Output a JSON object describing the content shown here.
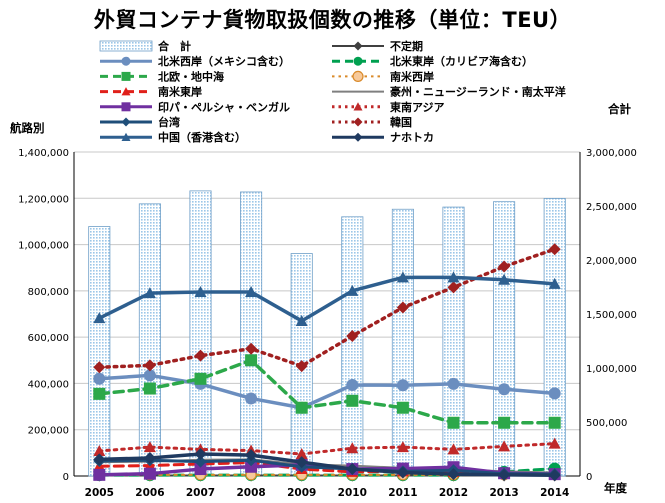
{
  "chart_data": {
    "type": "bar+line",
    "title": "外貿コンテナ貨物取扱個数の推移（単位：TEU）",
    "x": [
      "2005",
      "2006",
      "2007",
      "2008",
      "2009",
      "2010",
      "2011",
      "2012",
      "2013",
      "2014"
    ],
    "xlabel": "年度",
    "ylabel_left": "航路別",
    "ylabel_right": "合計",
    "ylim_left": [
      0,
      1400000
    ],
    "ylim_right": [
      0,
      3000000
    ],
    "yticks_left": [
      "0",
      "200,000",
      "400,000",
      "600,000",
      "800,000",
      "1,000,000",
      "1,200,000",
      "1,400,000"
    ],
    "yticks_right": [
      "0",
      "500,000",
      "1,000,000",
      "1,500,000",
      "2,000,000",
      "2,500,000",
      "3,000,000"
    ],
    "bar": {
      "name": "合　計",
      "axis": "right",
      "color": "#9cc7e8",
      "values": [
        2310000,
        2520000,
        2640000,
        2630000,
        2060000,
        2400000,
        2470000,
        2490000,
        2540000,
        2570000
      ]
    },
    "series": [
      {
        "name": "不定期",
        "color": "#404040",
        "marker": "diamond",
        "dash": "solid",
        "width": 2,
        "values": [
          2000,
          2000,
          2000,
          2000,
          2000,
          2000,
          2000,
          2000,
          2000,
          2000
        ]
      },
      {
        "name": "北米西岸（メキシコ含む）",
        "color": "#6b8ebf",
        "marker": "circle",
        "dash": "solid",
        "width": 3.5,
        "values": [
          420000,
          435000,
          398000,
          335000,
          295000,
          393000,
          392000,
          398000,
          375000,
          357000
        ]
      },
      {
        "name": "北米東岸（カリビア海含む）",
        "color": "#00a050",
        "marker": "circle",
        "dash": "dash",
        "width": 3,
        "values": [
          4000,
          4000,
          4000,
          4000,
          4000,
          4000,
          4000,
          4000,
          18000,
          32000
        ]
      },
      {
        "name": "北欧・地中海",
        "color": "#2ca84a",
        "marker": "square",
        "dash": "dash",
        "width": 3.5,
        "values": [
          355000,
          378000,
          420000,
          500000,
          295000,
          325000,
          295000,
          230000,
          230000,
          230000
        ]
      },
      {
        "name": "南米西岸",
        "color": "#d98a2a",
        "marker": "xcircle",
        "dash": "dot",
        "width": 2,
        "values": [
          5000,
          5000,
          5000,
          5000,
          5000,
          5000,
          5000,
          5000,
          5000,
          5000
        ]
      },
      {
        "name": "南米東岸",
        "color": "#e0201a",
        "marker": "triangle",
        "dash": "dash",
        "width": 3,
        "values": [
          42000,
          45000,
          52000,
          58000,
          30000,
          18000,
          20000,
          18000,
          12000,
          8000
        ]
      },
      {
        "name": "豪州・ニュージーランド・南太平洋",
        "color": "#7f7f7f",
        "marker": "none",
        "dash": "solid",
        "width": 2,
        "values": [
          60000,
          62000,
          70000,
          72000,
          50000,
          45000,
          35000,
          30000,
          20000,
          15000
        ]
      },
      {
        "name": "印パ・ペルシャ・ベンガル",
        "color": "#7030a0",
        "marker": "square",
        "dash": "solid",
        "width": 3.5,
        "values": [
          5000,
          10000,
          30000,
          40000,
          48000,
          30000,
          32000,
          38000,
          12000,
          8000
        ]
      },
      {
        "name": "東南アジア",
        "color": "#c0292a",
        "marker": "triangle",
        "dash": "dot",
        "width": 3,
        "values": [
          108000,
          125000,
          115000,
          110000,
          95000,
          120000,
          125000,
          115000,
          128000,
          140000
        ]
      },
      {
        "name": "台湾",
        "color": "#1f4e79",
        "marker": "diamond",
        "dash": "solid",
        "width": 3,
        "values": [
          65000,
          68000,
          62000,
          68000,
          40000,
          30000,
          20000,
          25000,
          10000,
          8000
        ]
      },
      {
        "name": "韓国",
        "color": "#a02020",
        "marker": "diamond",
        "dash": "dot",
        "width": 3.5,
        "values": [
          470000,
          478000,
          520000,
          550000,
          475000,
          605000,
          728000,
          815000,
          905000,
          980000
        ]
      },
      {
        "name": "中国（香港含む）",
        "color": "#2e5f8f",
        "marker": "triangle",
        "dash": "solid",
        "width": 3.5,
        "values": [
          682000,
          790000,
          795000,
          795000,
          670000,
          800000,
          858000,
          858000,
          848000,
          830000
        ]
      },
      {
        "name": "ナホトカ",
        "color": "#1f3a60",
        "marker": "diamond",
        "dash": "solid",
        "width": 3.5,
        "values": [
          72000,
          78000,
          95000,
          90000,
          60000,
          30000,
          15000,
          8000,
          5000,
          3000
        ]
      }
    ],
    "legend": "top, two columns",
    "grid": true
  }
}
